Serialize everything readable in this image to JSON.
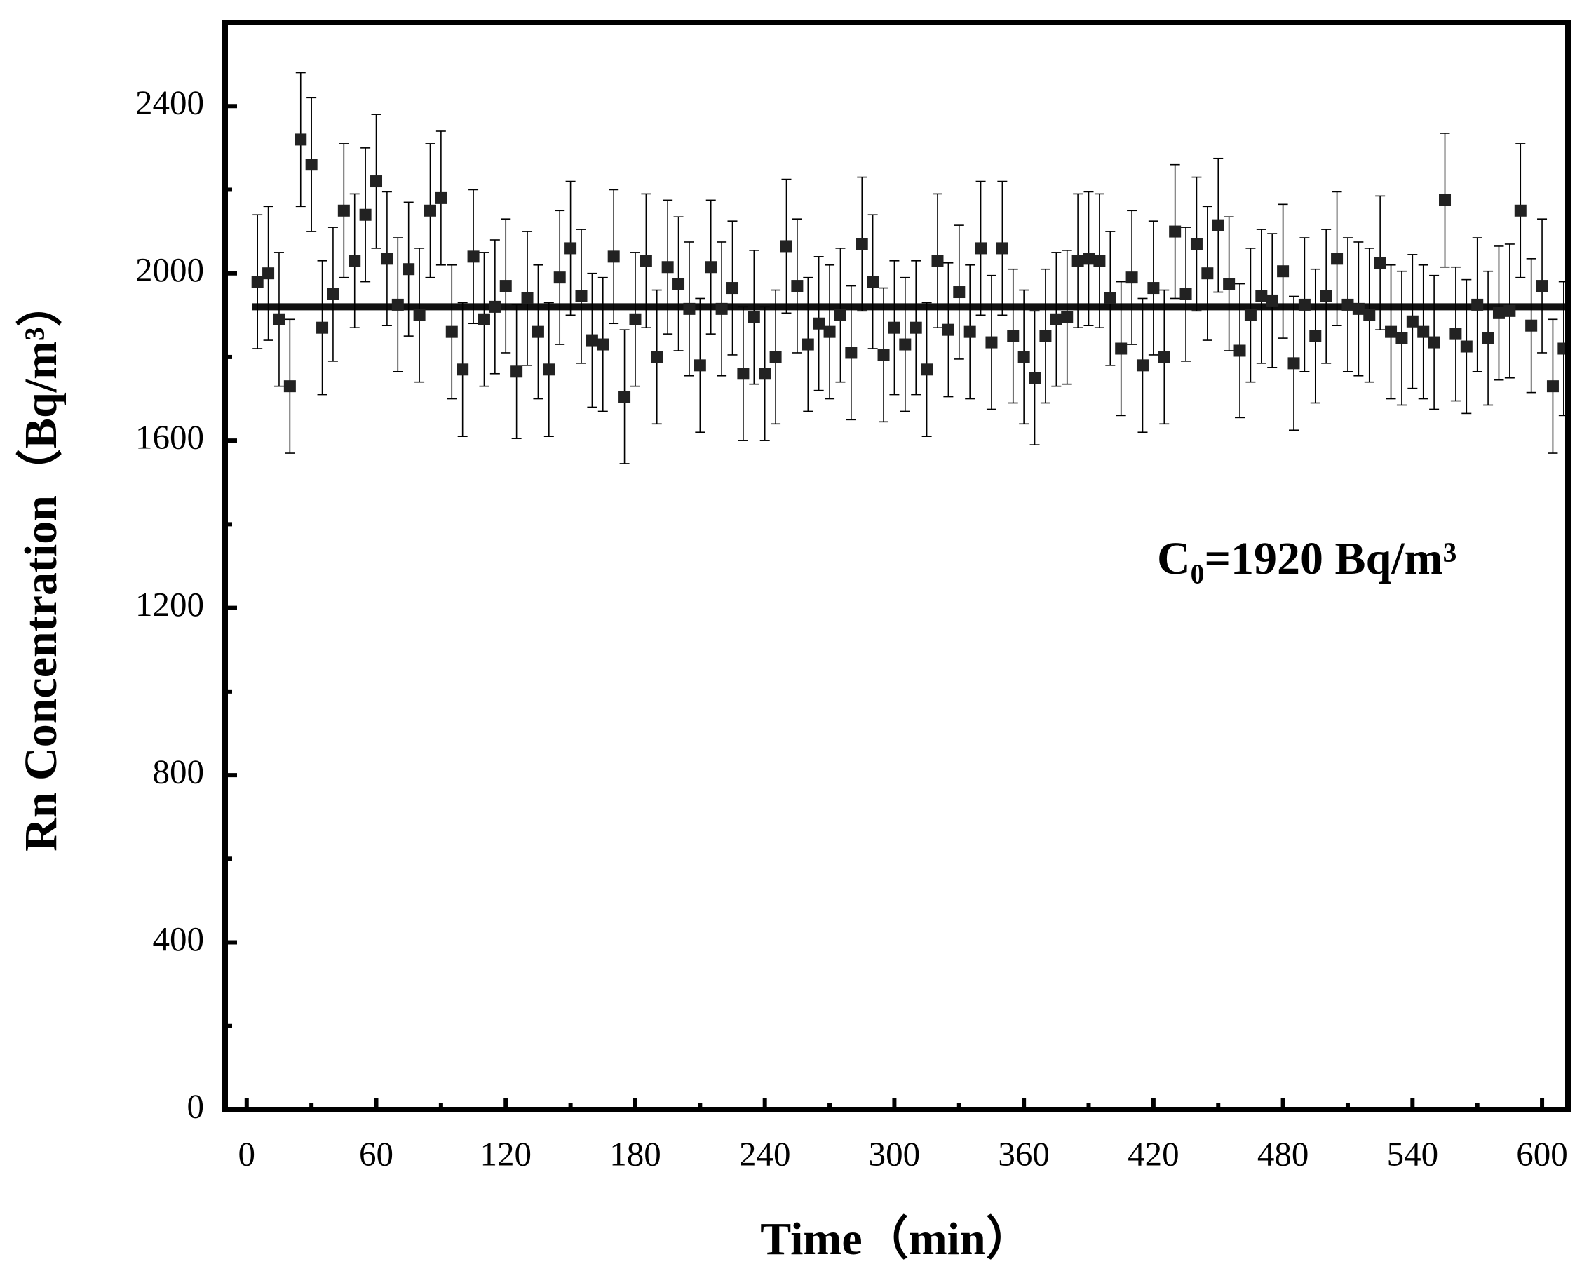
{
  "chart_data": {
    "type": "scatter",
    "xlabel": "Time（min）",
    "ylabel": "Rn Concentration（Bq/m³）",
    "annotation": "C₀=1920 Bq/m³",
    "reference_line": 1920,
    "xlim": [
      -10,
      612
    ],
    "ylim": [
      0,
      2600
    ],
    "xticks": [
      0,
      60,
      120,
      180,
      240,
      300,
      360,
      420,
      480,
      540,
      600
    ],
    "xminorticks": [
      30,
      90,
      150,
      210,
      270,
      330,
      390,
      450,
      510,
      570
    ],
    "yticks": [
      0,
      400,
      800,
      1200,
      1600,
      2000,
      2400
    ],
    "yminorticks": [
      200,
      600,
      1000,
      1400,
      1800,
      2200
    ],
    "series": [
      {
        "color": "#222222",
        "error": 160,
        "x": [
          5,
          10,
          15,
          20,
          25,
          30,
          35,
          40,
          45,
          50,
          55,
          60,
          65,
          70,
          75,
          80,
          85,
          90,
          95,
          100,
          105,
          110,
          115,
          120,
          125,
          130,
          135,
          140,
          145,
          150,
          155,
          160,
          165,
          170,
          175,
          180,
          185,
          190,
          195,
          200,
          205,
          210,
          215,
          220,
          225,
          230,
          235,
          240,
          245,
          250,
          255,
          260,
          265,
          270,
          275,
          280,
          285,
          290,
          295,
          300,
          305,
          310,
          315,
          320,
          325,
          330,
          335,
          340,
          345,
          350,
          355,
          360,
          365,
          370,
          375,
          380,
          385,
          390,
          395,
          400,
          405,
          410,
          415,
          420,
          425,
          430,
          435,
          440,
          445,
          450,
          455,
          460,
          465,
          470,
          475,
          480,
          485,
          490,
          495,
          500,
          505,
          510,
          515,
          520,
          525,
          530,
          535,
          540,
          545,
          550,
          555,
          560,
          565,
          570,
          575,
          580,
          585,
          590,
          595,
          600,
          605,
          610
        ],
        "values": [
          1980,
          2000,
          1890,
          1730,
          2320,
          2260,
          1870,
          1950,
          2150,
          2030,
          2140,
          2220,
          2035,
          1925,
          2010,
          1900,
          2150,
          2180,
          1860,
          1770,
          2040,
          1890,
          1920,
          1970,
          1765,
          1940,
          1860,
          1770,
          1990,
          2060,
          1945,
          1840,
          1830,
          2040,
          1705,
          1890,
          2030,
          1800,
          2015,
          1975,
          1915,
          1780,
          2015,
          1915,
          1965,
          1760,
          1895,
          1760,
          1800,
          2065,
          1970,
          1830,
          1880,
          1860,
          1900,
          1810,
          2070,
          1980,
          1805,
          1870,
          1830,
          1870,
          1770,
          2030,
          1865,
          1955,
          1860,
          2060,
          1835,
          2060,
          1850,
          1800,
          1750,
          1850,
          1890,
          1895,
          2030,
          2035,
          2030,
          1940,
          1820,
          1990,
          1780,
          1965,
          1800,
          2100,
          1950,
          2070,
          2000,
          2115,
          1975,
          1815,
          1900,
          1945,
          1935,
          2005,
          1785,
          1925,
          1850,
          1945,
          2035,
          1925,
          1915,
          1900,
          2025,
          1860,
          1845,
          1885,
          1860,
          1835,
          2175,
          1855,
          1825,
          1925,
          1845,
          1905,
          1910,
          2150,
          1875,
          1970,
          1730,
          1820
        ]
      }
    ]
  }
}
